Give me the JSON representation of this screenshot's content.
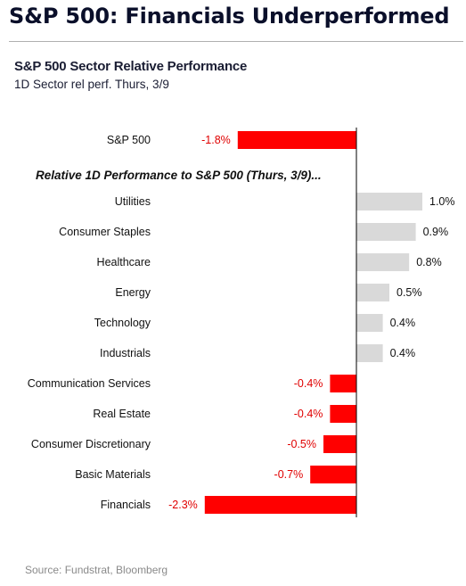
{
  "headline": "S&P 500: Financials Underperformed",
  "source": "Source: Fundstrat, Bloomberg",
  "colors": {
    "negative": "#ff0000",
    "positive": "#d9d9d9",
    "negative_label": "#e00000"
  },
  "chart_data": {
    "type": "bar",
    "orientation": "horizontal",
    "title": "S&P 500 Sector Relative Performance",
    "subtitle": "1D Sector rel perf. Thurs, 3/9",
    "benchmark": {
      "label": "S&P 500",
      "value": -1.8,
      "value_label": "-1.8%"
    },
    "section_label": "Relative 1D Performance to S&P 500 (Thurs, 3/9)...",
    "categories": [
      "Utilities",
      "Consumer Staples",
      "Healthcare",
      "Energy",
      "Technology",
      "Industrials",
      "Communication Services",
      "Real Estate",
      "Consumer Discretionary",
      "Basic Materials",
      "Financials"
    ],
    "values": [
      1.0,
      0.9,
      0.8,
      0.5,
      0.4,
      0.4,
      -0.4,
      -0.4,
      -0.5,
      -0.7,
      -2.3
    ],
    "value_labels": [
      "1.0%",
      "0.9%",
      "0.8%",
      "0.5%",
      "0.4%",
      "0.4%",
      "-0.4%",
      "-0.4%",
      "-0.5%",
      "-0.7%",
      "-2.3%"
    ],
    "xlim": [
      -2.3,
      1.0
    ]
  }
}
